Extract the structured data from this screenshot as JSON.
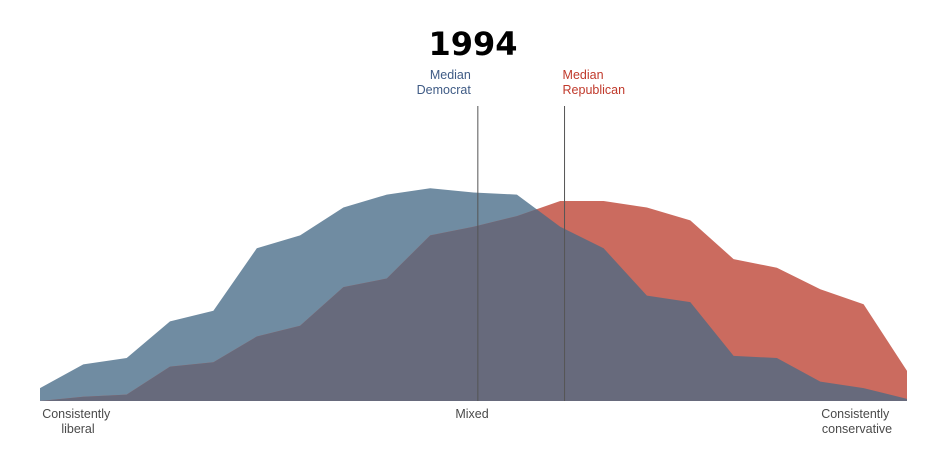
{
  "chart_data": {
    "type": "area",
    "title": "1994",
    "x_tick_labels": {
      "left": [
        "Consistently",
        "liberal"
      ],
      "center": "Mixed",
      "right": [
        "Consistently",
        "conservative"
      ]
    },
    "x": [
      -10,
      -9,
      -8,
      -7,
      -6,
      -5,
      -4,
      -3,
      -2,
      -1,
      0,
      1,
      2,
      3,
      4,
      5,
      6,
      7,
      8,
      9,
      10
    ],
    "ylim": [
      0,
      1
    ],
    "grid": false,
    "legend": "none",
    "series": [
      {
        "color": "#708ca2",
        "values": [
          0.06,
          0.17,
          0.2,
          0.37,
          0.42,
          0.71,
          0.77,
          0.9,
          0.96,
          0.99,
          0.97,
          0.96,
          0.81,
          0.71,
          0.49,
          0.46,
          0.21,
          0.2,
          0.09,
          0.06,
          0.01
        ]
      },
      {
        "color": "#cb6b5f",
        "values": [
          0.0,
          0.02,
          0.03,
          0.16,
          0.18,
          0.3,
          0.35,
          0.53,
          0.57,
          0.77,
          0.81,
          0.86,
          0.93,
          0.93,
          0.9,
          0.84,
          0.66,
          0.62,
          0.52,
          0.45,
          0.14
        ]
      }
    ],
    "overlap_color": "#676a7c",
    "medians": [
      {
        "label": [
          "Median",
          "Democrat"
        ],
        "x": 0.1,
        "color": "#3f5b85"
      },
      {
        "label": [
          "Median",
          "Republican"
        ],
        "x": 2.1,
        "color": "#c0392b"
      }
    ]
  }
}
